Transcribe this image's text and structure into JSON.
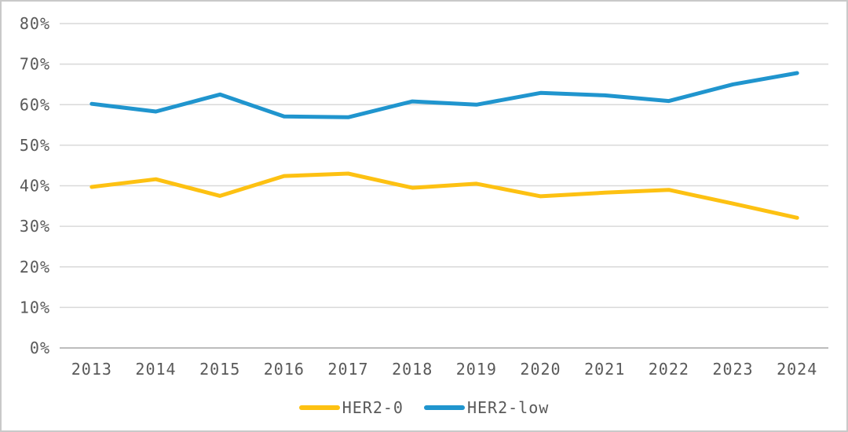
{
  "panel": {
    "background": "#ffffff",
    "border_color": "#c9c9c9"
  },
  "chart_data": {
    "type": "line",
    "title": "",
    "xlabel": "",
    "ylabel": "",
    "categories": [
      "2013",
      "2014",
      "2015",
      "2016",
      "2017",
      "2018",
      "2019",
      "2020",
      "2021",
      "2022",
      "2023",
      "2024"
    ],
    "series": [
      {
        "name": "HER2-0",
        "color": "#FDC112",
        "values": [
          39.7,
          41.6,
          37.5,
          42.4,
          43.0,
          39.5,
          40.5,
          37.4,
          38.3,
          39.0,
          35.6,
          32.1
        ]
      },
      {
        "name": "HER2-low",
        "color": "#2095CE",
        "values": [
          60.2,
          58.3,
          62.5,
          57.1,
          56.9,
          60.8,
          60.0,
          62.9,
          62.3,
          60.9,
          65.0,
          67.8
        ]
      }
    ],
    "y_axis": {
      "min": 0,
      "max": 80,
      "step": 10,
      "tick_suffix": "%",
      "tick_labels": [
        "0%",
        "10%",
        "20%",
        "30%",
        "40%",
        "50%",
        "60%",
        "70%",
        "80%"
      ]
    },
    "grid": true,
    "legend_position": "bottom",
    "style": {
      "gridline_color": "#d9d9d9",
      "axis_line_color": "#bdbdbd",
      "text_color": "#595959",
      "line_width": 5
    }
  }
}
